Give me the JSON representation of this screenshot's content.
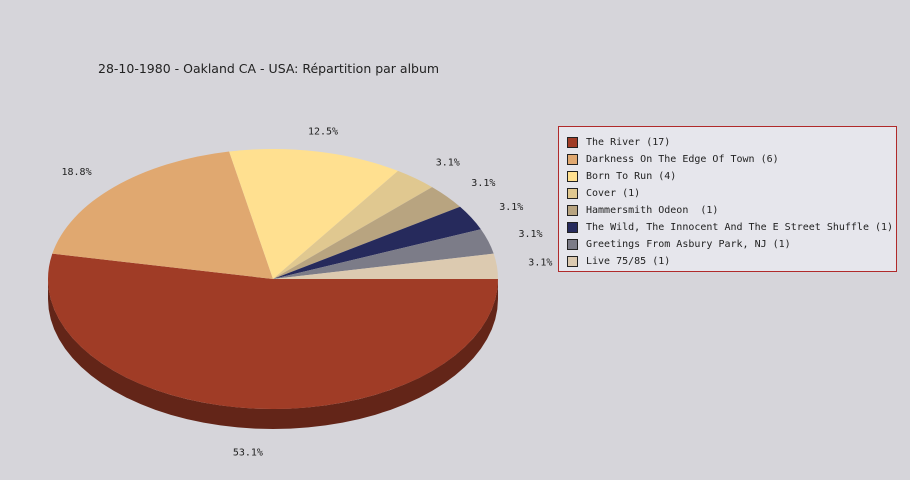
{
  "chart_data": {
    "type": "pie",
    "title": "28-10-1980 - Oakland CA - USA:  Répartition par album",
    "legend_position": "right",
    "slices": [
      {
        "name": "The River (17)",
        "value": 17,
        "label": "53.1%",
        "color": "#a03c26"
      },
      {
        "name": "Darkness On The Edge Of Town (6)",
        "value": 6,
        "label": "18.8%",
        "color": "#e0a870"
      },
      {
        "name": "Born To Run (4)",
        "value": 4,
        "label": "12.5%",
        "color": "#ffe090"
      },
      {
        "name": "Cover (1)",
        "value": 1,
        "label": "3.1%",
        "color": "#e0c890"
      },
      {
        "name": "Hammersmith Odeon  (1)",
        "value": 1,
        "label": "3.1%",
        "color": "#b8a480"
      },
      {
        "name": "The Wild, The Innocent And The E Street Shuffle (1)",
        "value": 1,
        "label": "3.1%",
        "color": "#262a5c"
      },
      {
        "name": "Greetings From Asbury Park, NJ (1)",
        "value": 1,
        "label": "3.1%",
        "color": "#7c7c88"
      },
      {
        "name": "Live 75/85 (1)",
        "value": 1,
        "label": "3.1%",
        "color": "#dccab0"
      }
    ]
  }
}
